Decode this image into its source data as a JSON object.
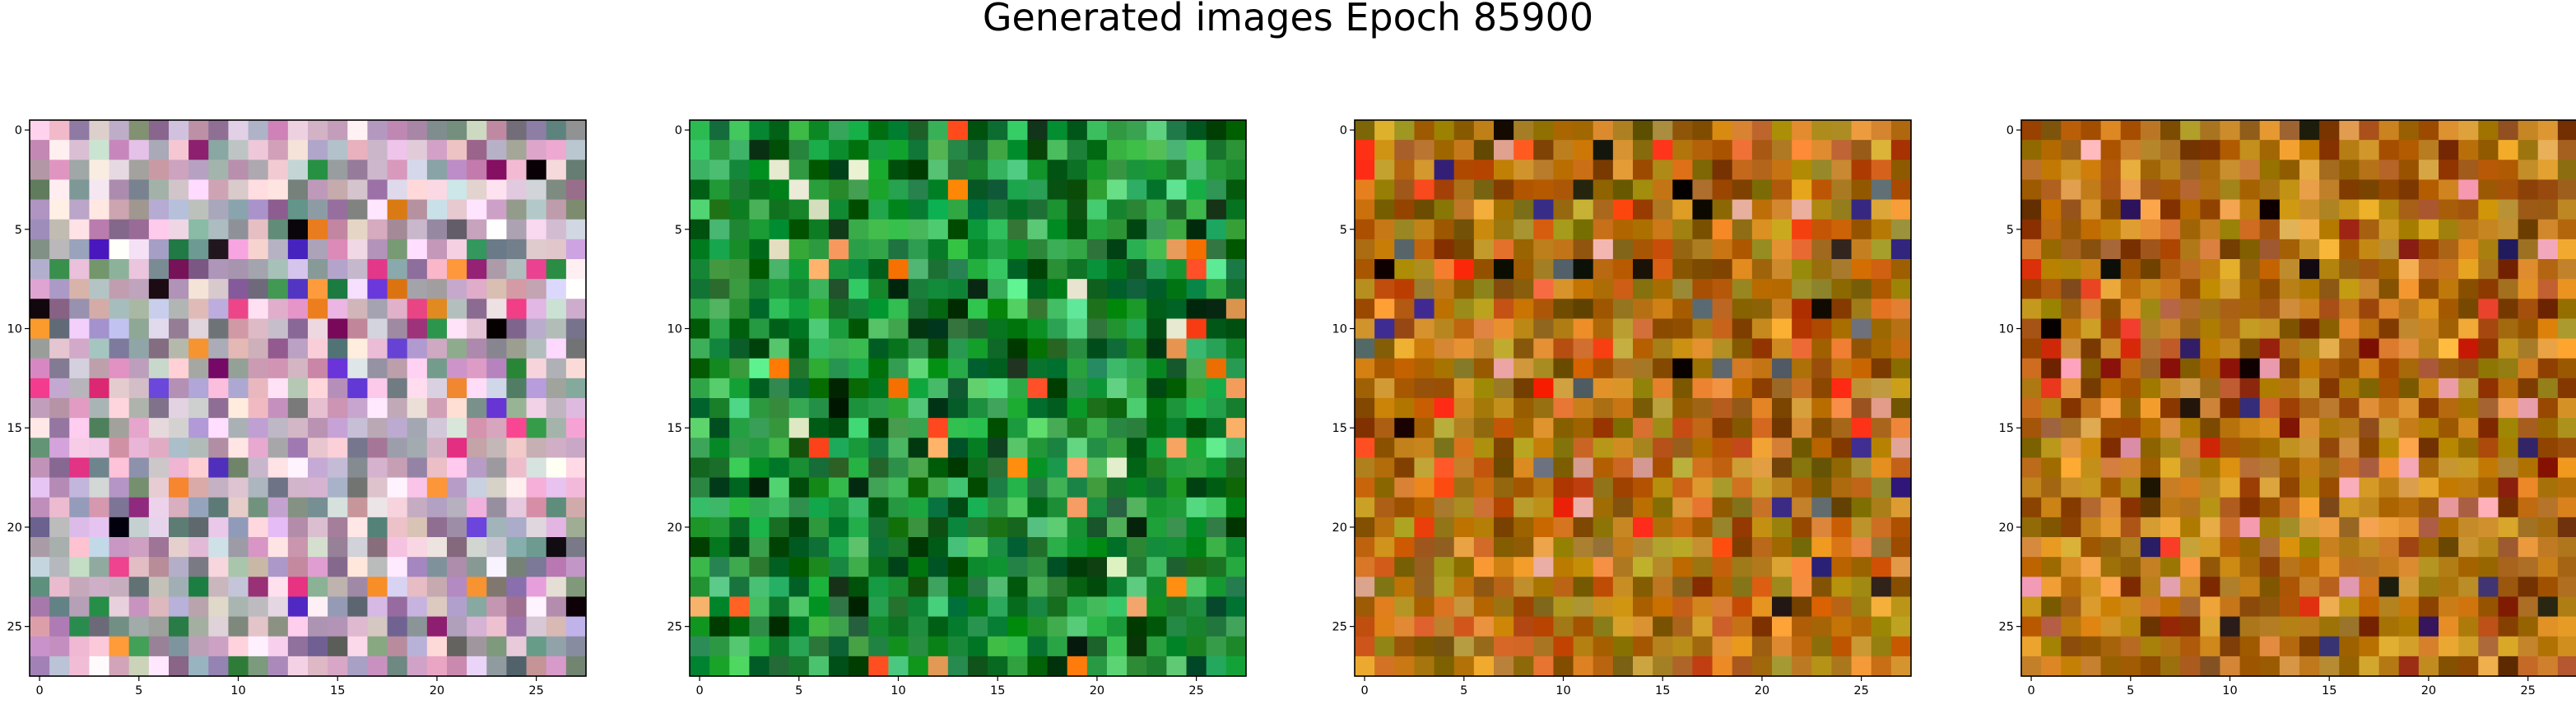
{
  "title": "Generated images Epoch 85900",
  "chart_data": [
    {
      "type": "heatmap",
      "image": "panel-1-generated-image",
      "palette_theme": "pastel-pink-lavender",
      "base_colors": [
        "#d9a3c2",
        "#c8b6d6",
        "#e8c7d3",
        "#9b7fa6",
        "#b5bcc0",
        "#f2d6e3",
        "#7a8f86"
      ],
      "accent_colors": [
        "#e4317f",
        "#1a0e17",
        "#8b1c6e",
        "#f08a2a",
        "#5b2fc9",
        "#2e8c4a"
      ],
      "grid_size": [
        28,
        28
      ],
      "xlim": [
        -0.5,
        27.5
      ],
      "ylim": [
        27.5,
        -0.5
      ],
      "xticks": [
        0,
        5,
        10,
        15,
        20,
        25
      ],
      "yticks": [
        0,
        5,
        10,
        15,
        20,
        25
      ],
      "xtick_labels": [
        "0",
        "5",
        "10",
        "15",
        "20",
        "25"
      ],
      "ytick_labels": [
        "0",
        "5",
        "10",
        "15",
        "20",
        "25"
      ]
    },
    {
      "type": "heatmap",
      "image": "panel-2-generated-image",
      "palette_theme": "green",
      "base_colors": [
        "#1d8a2f",
        "#0d6b24",
        "#2aa542",
        "#07511a",
        "#159c3b",
        "#3bb15a",
        "#0a7a32"
      ],
      "accent_colors": [
        "#ff4a1a",
        "#f2a064",
        "#e8f2d0",
        "#0a2a12",
        "#55e08c",
        "#ff7a00"
      ],
      "grid_size": [
        28,
        28
      ],
      "xlim": [
        -0.5,
        27.5
      ],
      "ylim": [
        27.5,
        -0.5
      ],
      "xticks": [
        0,
        5,
        10,
        15,
        20,
        25
      ],
      "yticks": [
        0,
        5,
        10,
        15,
        20,
        25
      ],
      "xtick_labels": [
        "0",
        "5",
        "10",
        "15",
        "20",
        "25"
      ],
      "ytick_labels": [
        "0",
        "5",
        "10",
        "15",
        "20",
        "25"
      ]
    },
    {
      "type": "heatmap",
      "image": "panel-3-generated-image",
      "palette_theme": "orange-brown-red",
      "base_colors": [
        "#b8700e",
        "#c98a1f",
        "#9a5a0a",
        "#d4781a",
        "#8a6a10",
        "#c45a12",
        "#a88a1a"
      ],
      "accent_colors": [
        "#ff2a10",
        "#ff4a18",
        "#1a1208",
        "#3a2a8a",
        "#e8b0a0",
        "#5a6a70"
      ],
      "grid_size": [
        28,
        28
      ],
      "xlim": [
        -0.5,
        27.5
      ],
      "ylim": [
        27.5,
        -0.5
      ],
      "xticks": [
        0,
        5,
        10,
        15,
        20,
        25
      ],
      "yticks": [
        0,
        5,
        10,
        15,
        20,
        25
      ],
      "xtick_labels": [
        "0",
        "5",
        "10",
        "15",
        "20",
        "25"
      ],
      "ytick_labels": [
        "0",
        "5",
        "10",
        "15",
        "20",
        "25"
      ]
    },
    {
      "type": "heatmap",
      "image": "panel-4-generated-image",
      "palette_theme": "orange-brown-red",
      "base_colors": [
        "#c07a12",
        "#d4901e",
        "#a05a0c",
        "#b86a14",
        "#8e4a0c",
        "#cc8a2a",
        "#a8780e"
      ],
      "accent_colors": [
        "#e0301a",
        "#8a1c0a",
        "#1a1008",
        "#2a1a60",
        "#f0a0b0",
        "#b06040"
      ],
      "grid_size": [
        28,
        28
      ],
      "xlim": [
        -0.5,
        27.5
      ],
      "ylim": [
        27.5,
        -0.5
      ],
      "xticks": [
        0,
        5,
        10,
        15,
        20,
        25
      ],
      "yticks": [
        0,
        5,
        10,
        15,
        20,
        25
      ],
      "xtick_labels": [
        "0",
        "5",
        "10",
        "15",
        "20",
        "25"
      ],
      "ytick_labels": [
        "0",
        "5",
        "10",
        "15",
        "20",
        "25"
      ]
    }
  ]
}
